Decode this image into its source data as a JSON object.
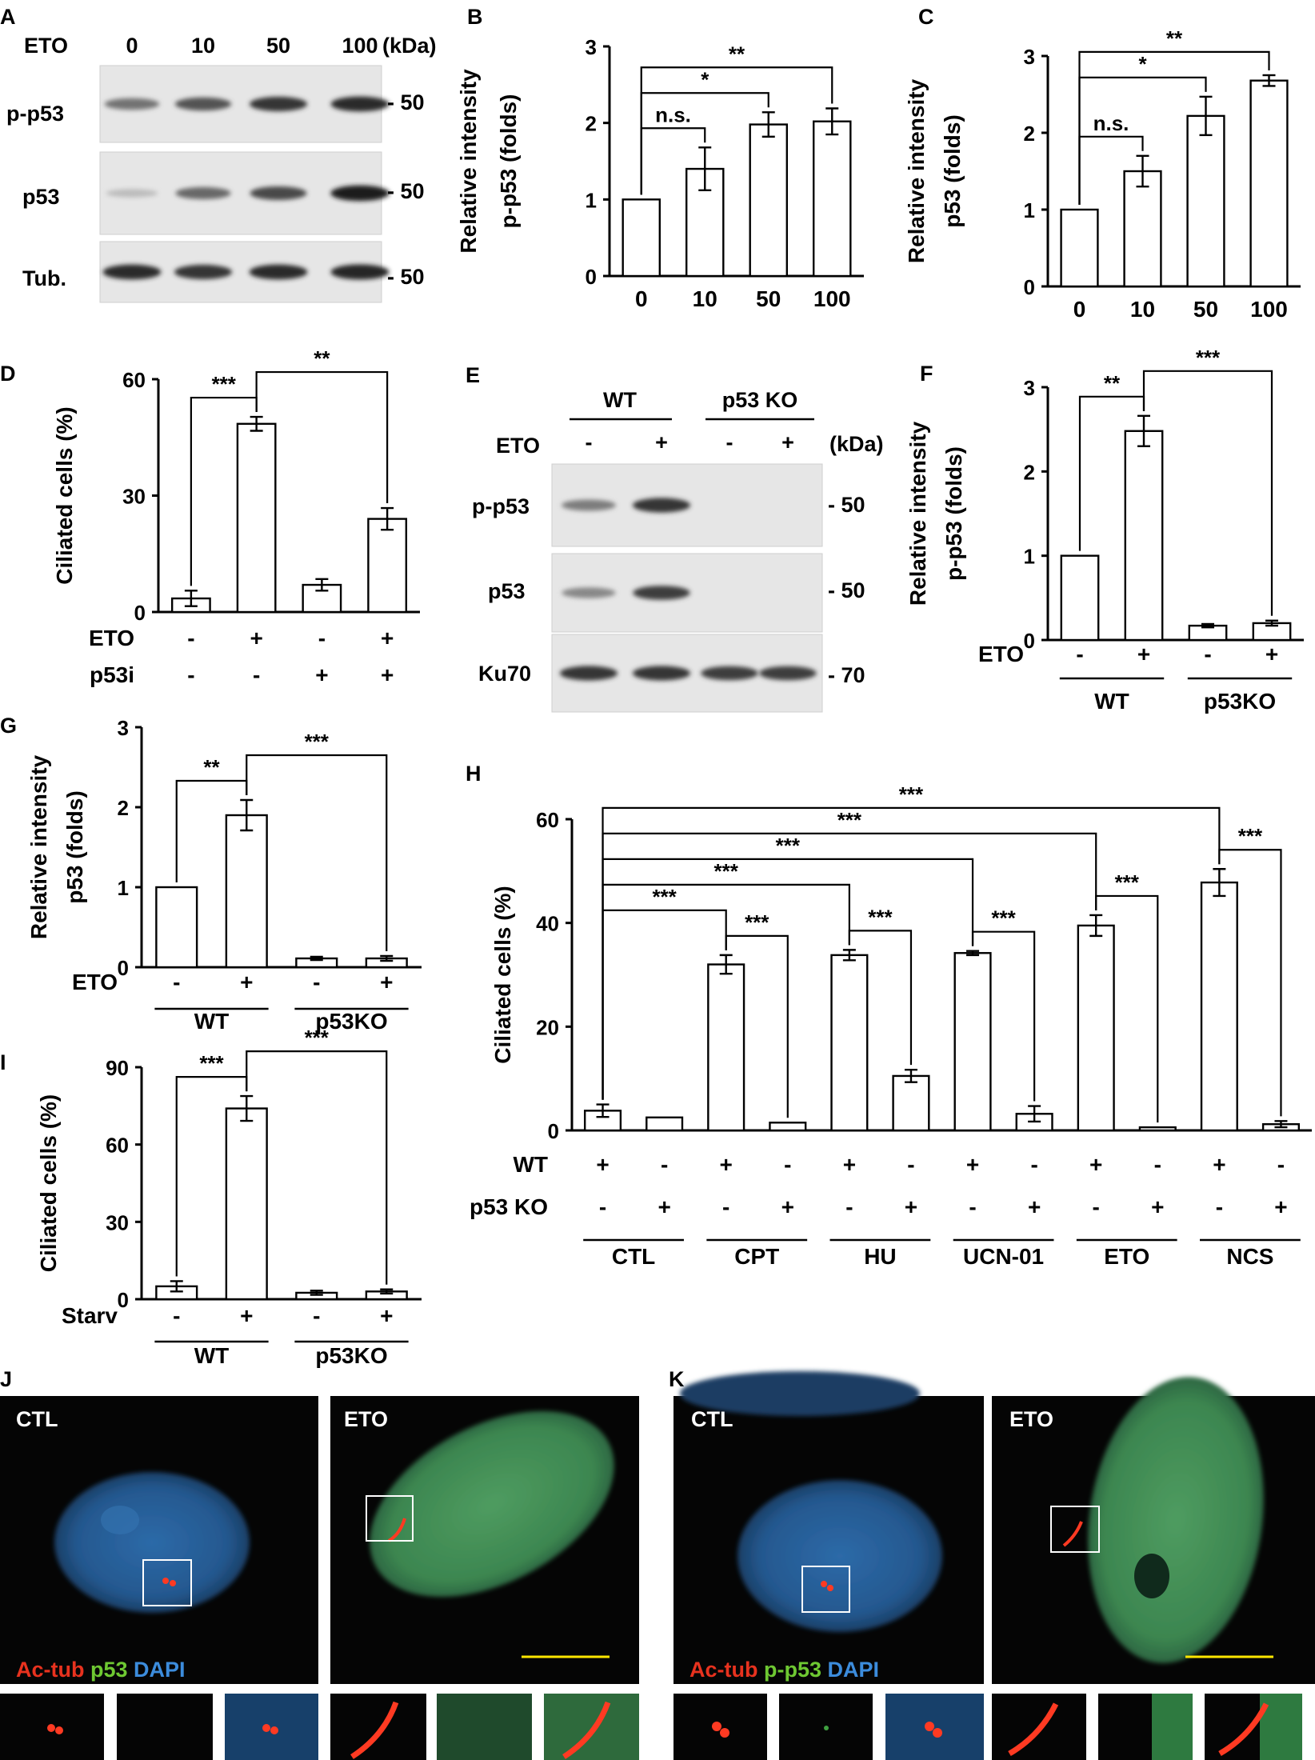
{
  "panels": {
    "A": {
      "letter": "A",
      "header": [
        "ETO",
        "0",
        "10",
        "50",
        "100",
        "(kDa)"
      ],
      "blots": [
        {
          "label": "p-p53",
          "kda": "- 50",
          "intensity": [
            0.55,
            0.7,
            0.85,
            0.9
          ]
        },
        {
          "label": "p53",
          "kda": "- 50",
          "intensity": [
            0.2,
            0.6,
            0.75,
            0.95
          ]
        },
        {
          "label": "Tub.",
          "kda": "- 50",
          "intensity": [
            0.9,
            0.85,
            0.9,
            0.92
          ]
        }
      ]
    },
    "E": {
      "letter": "E",
      "groups": [
        "WT",
        "p53 KO"
      ],
      "signs_label": "ETO",
      "signs": [
        "-",
        "+",
        "-",
        "+"
      ],
      "kda_header": "(kDa)",
      "blots": [
        {
          "label": "p-p53",
          "kda": "- 50",
          "intensity": [
            0.5,
            0.85,
            0,
            0
          ]
        },
        {
          "label": "p53",
          "kda": "- 50",
          "intensity": [
            0.45,
            0.8,
            0,
            0
          ]
        },
        {
          "label": "Ku70",
          "kda": "- 70",
          "intensity": [
            0.85,
            0.85,
            0.8,
            0.8
          ]
        }
      ]
    },
    "J": {
      "letter": "J",
      "labels": [
        "CTL",
        "ETO"
      ],
      "legend": [
        {
          "text": "Ac-tub",
          "color": "#e8321e"
        },
        {
          "text": " p53",
          "color": "#6ec832"
        },
        {
          "text": " DAPI",
          "color": "#3c8cdc"
        }
      ]
    },
    "K": {
      "letter": "K",
      "labels": [
        "CTL",
        "ETO"
      ],
      "legend": [
        {
          "text": "Ac-tub",
          "color": "#e8321e"
        },
        {
          "text": " p-p53",
          "color": "#6ec832"
        },
        {
          "text": " DAPI",
          "color": "#3c8cdc"
        }
      ]
    }
  },
  "chart_data": [
    {
      "panel": "B",
      "type": "bar",
      "ylabel": [
        "Relative intensity",
        "p-p53 (folds)"
      ],
      "categories": [
        "0",
        "10",
        "50",
        "100"
      ],
      "values": [
        1.0,
        1.4,
        1.98,
        2.02
      ],
      "errors": [
        0,
        0.28,
        0.16,
        0.17
      ],
      "ylim": [
        0,
        3
      ],
      "yticks": [
        0,
        1,
        2,
        3
      ],
      "significance": [
        {
          "from": 0,
          "to": 1,
          "label": "n.s."
        },
        {
          "from": 0,
          "to": 2,
          "label": "*"
        },
        {
          "from": 0,
          "to": 3,
          "label": "**"
        }
      ]
    },
    {
      "panel": "C",
      "type": "bar",
      "ylabel": [
        "Relative intensity",
        "p53 (folds)"
      ],
      "categories": [
        "0",
        "10",
        "50",
        "100"
      ],
      "values": [
        1.0,
        1.5,
        2.22,
        2.68
      ],
      "errors": [
        0,
        0.2,
        0.25,
        0.07
      ],
      "ylim": [
        0,
        3
      ],
      "yticks": [
        0,
        1,
        2,
        3
      ],
      "significance": [
        {
          "from": 0,
          "to": 1,
          "label": "n.s."
        },
        {
          "from": 0,
          "to": 2,
          "label": "*"
        },
        {
          "from": 0,
          "to": 3,
          "label": "**"
        }
      ]
    },
    {
      "panel": "D",
      "type": "bar",
      "ylabel": [
        "Ciliated cells (%)"
      ],
      "categories": [
        "",
        "",
        "",
        ""
      ],
      "values": [
        3.5,
        48.5,
        7.0,
        24.0
      ],
      "errors": [
        2.0,
        1.8,
        1.5,
        2.8
      ],
      "ylim": [
        0,
        60
      ],
      "yticks": [
        0,
        30,
        60
      ],
      "rows": [
        {
          "label": "ETO",
          "signs": [
            "-",
            "+",
            "-",
            "+"
          ]
        },
        {
          "label": "p53i",
          "signs": [
            "-",
            "-",
            "+",
            "+"
          ]
        }
      ],
      "significance": [
        {
          "from": 0,
          "to": 1,
          "label": "***"
        },
        {
          "from": 1,
          "to": 3,
          "label": "**"
        }
      ]
    },
    {
      "panel": "F",
      "type": "bar",
      "ylabel": [
        "Relative intensity",
        "p-p53 (folds)"
      ],
      "categories": [
        "",
        "",
        "",
        ""
      ],
      "values": [
        1.0,
        2.48,
        0.17,
        0.2
      ],
      "errors": [
        0,
        0.18,
        0.02,
        0.03
      ],
      "ylim": [
        0,
        3
      ],
      "yticks": [
        0,
        1,
        2,
        3
      ],
      "rows": [
        {
          "label": "ETO",
          "signs": [
            "-",
            "+",
            "-",
            "+"
          ]
        }
      ],
      "groups": [
        "WT",
        "p53KO"
      ],
      "significance": [
        {
          "from": 0,
          "to": 1,
          "label": "**"
        },
        {
          "from": 1,
          "to": 3,
          "label": "***"
        }
      ]
    },
    {
      "panel": "G",
      "type": "bar",
      "ylabel": [
        "Relative intensity",
        "p53 (folds)"
      ],
      "categories": [
        "",
        "",
        "",
        ""
      ],
      "values": [
        1.0,
        1.9,
        0.11,
        0.11
      ],
      "errors": [
        0,
        0.19,
        0.02,
        0.03
      ],
      "ylim": [
        0,
        3
      ],
      "yticks": [
        0,
        1,
        2,
        3
      ],
      "rows": [
        {
          "label": "ETO",
          "signs": [
            "-",
            "+",
            "-",
            "+"
          ]
        }
      ],
      "groups": [
        "WT",
        "p53KO"
      ],
      "significance": [
        {
          "from": 0,
          "to": 1,
          "label": "**"
        },
        {
          "from": 1,
          "to": 3,
          "label": "***"
        }
      ]
    },
    {
      "panel": "H",
      "type": "bar",
      "ylabel": [
        "Ciliated cells (%)"
      ],
      "categories": [
        "",
        "",
        "",
        "",
        "",
        "",
        "",
        "",
        "",
        "",
        "",
        ""
      ],
      "values": [
        3.8,
        2.5,
        32.0,
        1.5,
        33.8,
        10.5,
        34.2,
        3.2,
        39.5,
        0.6,
        47.8,
        1.2
      ],
      "errors": [
        1.2,
        0,
        1.8,
        0,
        1.0,
        1.2,
        0.4,
        1.5,
        2.0,
        0,
        2.6,
        0.6
      ],
      "ylim": [
        0,
        60
      ],
      "yticks": [
        0,
        20,
        40,
        60
      ],
      "rows": [
        {
          "label": "WT",
          "signs": [
            "+",
            "-",
            "+",
            "-",
            "+",
            "-",
            "+",
            "-",
            "+",
            "-",
            "+",
            "-"
          ]
        },
        {
          "label": "p53 KO",
          "signs": [
            "-",
            "+",
            "-",
            "+",
            "-",
            "+",
            "-",
            "+",
            "-",
            "+",
            "-",
            "+"
          ]
        }
      ],
      "groups": [
        "CTL",
        "CPT",
        "HU",
        "UCN-01",
        "ETO",
        "NCS"
      ],
      "significance": [
        {
          "from": 0,
          "to": 2,
          "label": "***"
        },
        {
          "from": 0,
          "to": 4,
          "label": "***"
        },
        {
          "from": 0,
          "to": 6,
          "label": "***"
        },
        {
          "from": 0,
          "to": 8,
          "label": "***"
        },
        {
          "from": 0,
          "to": 10,
          "label": "***"
        },
        {
          "from": 2,
          "to": 3,
          "label": "***"
        },
        {
          "from": 4,
          "to": 5,
          "label": "***"
        },
        {
          "from": 6,
          "to": 7,
          "label": "***"
        },
        {
          "from": 8,
          "to": 9,
          "label": "***"
        },
        {
          "from": 10,
          "to": 11,
          "label": "***"
        }
      ]
    },
    {
      "panel": "I",
      "type": "bar",
      "ylabel": [
        "Ciliated cells (%)"
      ],
      "categories": [
        "",
        "",
        "",
        ""
      ],
      "values": [
        5.0,
        74.0,
        2.5,
        3.0
      ],
      "errors": [
        2.0,
        4.8,
        0.8,
        0.8
      ],
      "ylim": [
        0,
        90
      ],
      "yticks": [
        0,
        30,
        60,
        90
      ],
      "rows": [
        {
          "label": "Starv",
          "signs": [
            "-",
            "+",
            "-",
            "+"
          ]
        }
      ],
      "groups": [
        "WT",
        "p53KO"
      ],
      "significance": [
        {
          "from": 0,
          "to": 1,
          "label": "***"
        },
        {
          "from": 1,
          "to": 3,
          "label": "***"
        }
      ]
    }
  ]
}
